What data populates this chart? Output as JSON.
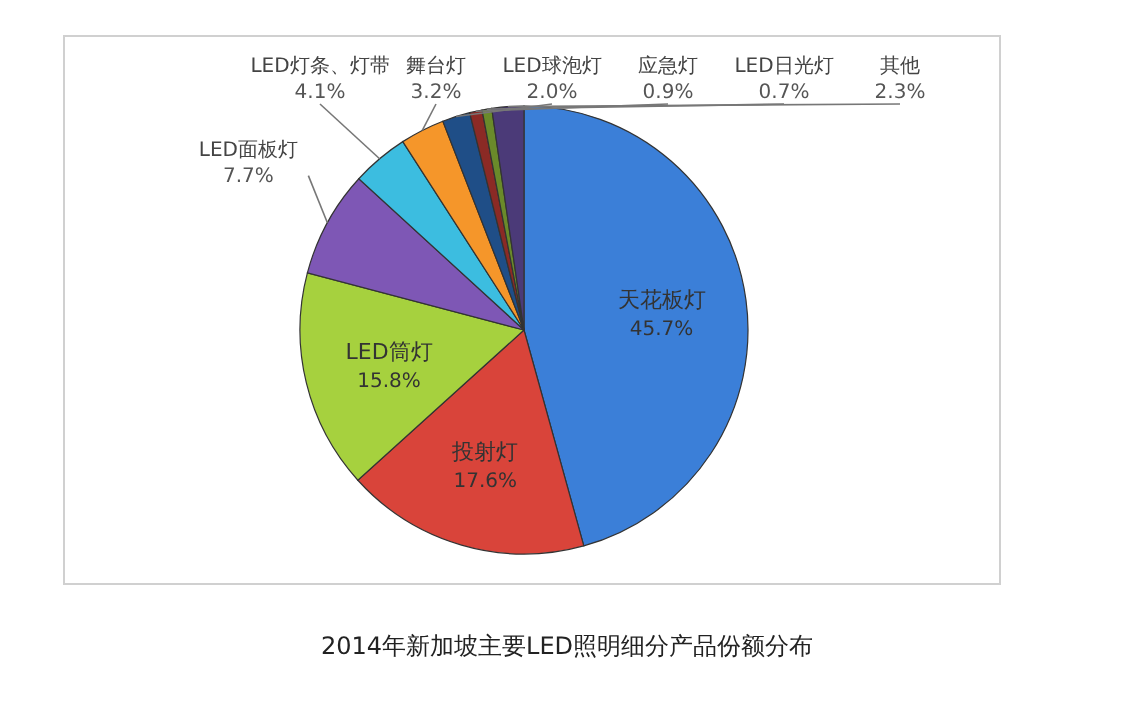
{
  "chart_data": {
    "type": "pie",
    "title": "2014年新加坡主要LED照明细分产品份额分布",
    "categories": [
      "天花板灯",
      "投射灯",
      "LED筒灯",
      "LED面板灯",
      "LED灯条、灯带",
      "舞台灯",
      "LED球泡灯",
      "应急灯",
      "LED日光灯",
      "其他"
    ],
    "values": [
      45.7,
      17.6,
      15.8,
      7.7,
      4.1,
      3.2,
      2.0,
      0.9,
      0.7,
      2.3
    ],
    "value_labels": [
      "45.7%",
      "17.6%",
      "15.8%",
      "7.7%",
      "4.1%",
      "3.2%",
      "2.0%",
      "0.9%",
      "0.7%",
      "2.3%"
    ],
    "colors": [
      "#3b7fd8",
      "#d9443a",
      "#a6d13e",
      "#7e57b5",
      "#3cbde0",
      "#f5962a",
      "#1f4e87",
      "#8b2a25",
      "#6a8a2a",
      "#4b3a78"
    ]
  }
}
